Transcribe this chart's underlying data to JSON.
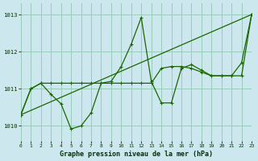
{
  "background_color": "#cce8ee",
  "grid_color": "#99ccbb",
  "line_color": "#1a6600",
  "title": "Graphe pression niveau de la mer (hPa)",
  "xlim": [
    0,
    23
  ],
  "ylim": [
    1009.6,
    1013.3
  ],
  "yticks": [
    1010,
    1011,
    1012,
    1013
  ],
  "xticks": [
    0,
    1,
    2,
    3,
    4,
    5,
    6,
    7,
    8,
    9,
    10,
    11,
    12,
    13,
    14,
    15,
    16,
    17,
    18,
    19,
    20,
    21,
    22,
    23
  ],
  "s1_x": [
    0,
    1,
    2,
    3,
    4,
    5,
    6,
    7,
    8,
    9,
    10,
    11,
    12,
    13,
    14,
    15,
    16,
    17,
    18,
    19,
    20,
    21,
    22,
    23
  ],
  "s1_y": [
    1010.3,
    1011.0,
    1011.15,
    1010.85,
    1010.6,
    1009.92,
    1010.0,
    1010.35,
    1011.15,
    1011.2,
    1011.6,
    1012.2,
    1012.92,
    1011.2,
    1010.62,
    1010.62,
    1011.55,
    1011.65,
    1011.5,
    1011.35,
    1011.35,
    1011.35,
    1011.7,
    1013.0
  ],
  "s2_x": [
    0,
    1,
    2,
    3,
    4,
    5,
    6,
    7,
    8,
    9,
    10,
    11,
    12,
    13,
    14,
    15,
    16,
    17,
    18,
    19,
    20,
    21,
    22,
    23
  ],
  "s2_y": [
    1010.3,
    1011.0,
    1011.15,
    1011.15,
    1011.15,
    1011.15,
    1011.15,
    1011.15,
    1011.15,
    1011.15,
    1011.15,
    1011.15,
    1011.15,
    1011.15,
    1011.55,
    1011.6,
    1011.6,
    1011.55,
    1011.45,
    1011.35,
    1011.35,
    1011.35,
    1011.35,
    1013.0
  ],
  "trend_x": [
    0,
    23
  ],
  "trend_y": [
    1010.3,
    1013.0
  ]
}
